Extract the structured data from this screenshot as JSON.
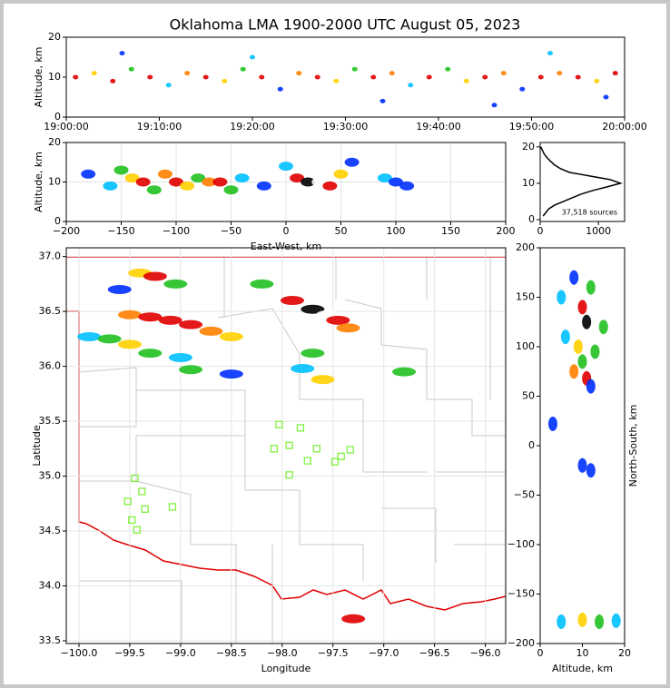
{
  "chart_data": [
    {
      "type": "scatter",
      "title": "Oklahoma LMA 1900-2000 UTC August 05, 2023",
      "ylabel": "Altitude, km",
      "xlim": [
        0,
        60
      ],
      "ylim": [
        0,
        20
      ],
      "yticks": [
        0,
        10,
        20
      ],
      "xticks": [
        {
          "value": 0,
          "label": "19:00:00"
        },
        {
          "value": 10,
          "label": "19:10:00"
        },
        {
          "value": 20,
          "label": "19:20:00"
        },
        {
          "value": 30,
          "label": "19:30:00"
        },
        {
          "value": 40,
          "label": "19:40:00"
        },
        {
          "value": 50,
          "label": "19:50:00"
        },
        {
          "value": 60,
          "label": "20:00:00"
        }
      ],
      "points": {
        "x": [
          1,
          3,
          5,
          7,
          9,
          11,
          13,
          15,
          17,
          19,
          21,
          23,
          25,
          27,
          29,
          31,
          33,
          35,
          37,
          39,
          41,
          43,
          45,
          47,
          49,
          51,
          53,
          55,
          57,
          59,
          6,
          20,
          34,
          46,
          52,
          58
        ],
        "values": [
          10,
          11,
          9,
          12,
          10,
          8,
          11,
          10,
          9,
          12,
          10,
          7,
          11,
          10,
          9,
          12,
          10,
          11,
          8,
          10,
          12,
          9,
          10,
          11,
          7,
          10,
          11,
          10,
          9,
          11,
          16,
          15,
          4,
          3,
          16,
          5
        ],
        "colors": [
          "#e00000",
          "#ffd000",
          "#e00000",
          "#20c020",
          "#e00000",
          "#00c0ff",
          "#ff8000",
          "#e00000",
          "#ffd000",
          "#20c020",
          "#e00000",
          "#0030ff",
          "#ff8000",
          "#e00000",
          "#ffd000",
          "#20c020",
          "#e00000",
          "#ff8000",
          "#00c0ff",
          "#e00000",
          "#20c020",
          "#ffd000",
          "#e00000",
          "#ff8000",
          "#0030ff",
          "#e00000",
          "#ff8000",
          "#e00000",
          "#ffd000",
          "#e00000",
          "#0030ff",
          "#00c0ff",
          "#0030ff",
          "#0030ff",
          "#00c0ff",
          "#0030ff"
        ]
      }
    },
    {
      "type": "scatter",
      "xlabel": "East-West, km",
      "ylabel": "Altitude, km",
      "grid": true,
      "xlim": [
        -200,
        200
      ],
      "ylim": [
        0,
        20
      ],
      "yticks": [
        0,
        10,
        20
      ],
      "xticks": [
        {
          "value": -200,
          "label": "−200"
        },
        {
          "value": -150,
          "label": "−150"
        },
        {
          "value": -100,
          "label": "−100"
        },
        {
          "value": -50,
          "label": "−50"
        },
        0,
        50,
        100,
        150,
        200
      ],
      "points": {
        "x": [
          -180,
          -160,
          -150,
          -140,
          -130,
          -120,
          -110,
          -100,
          -90,
          -80,
          -70,
          -60,
          -50,
          -40,
          -20,
          0,
          10,
          20,
          30,
          40,
          50,
          60,
          90,
          100,
          110
        ],
        "values": [
          12,
          9,
          13,
          11,
          10,
          8,
          12,
          10,
          9,
          11,
          10,
          10,
          8,
          11,
          9,
          14,
          11,
          10,
          10,
          9,
          12,
          15,
          11,
          10,
          9
        ],
        "colors": [
          "#0030ff",
          "#00c0ff",
          "#20c020",
          "#ffd000",
          "#e00000",
          "#20c020",
          "#ff8000",
          "#e00000",
          "#ffd000",
          "#20c020",
          "#ff8000",
          "#e00000",
          "#20c020",
          "#00c0ff",
          "#0030ff",
          "#00c0ff",
          "#e00000",
          "#000000",
          "#ffffff",
          "#e00000",
          "#ffd000",
          "#0030ff",
          "#00c0ff",
          "#0030ff",
          "#0030ff"
        ]
      }
    },
    {
      "type": "line",
      "annotation": "37,518 sources",
      "color": "#000000",
      "xlim": [
        0,
        1450
      ],
      "ylim": [
        -0.5,
        21.2
      ],
      "xticks": [
        0,
        1000
      ],
      "yticks": [
        0,
        10,
        20
      ],
      "y": [
        1,
        2,
        3,
        4,
        5,
        6,
        7,
        8,
        9,
        10,
        11,
        12,
        13,
        14,
        15,
        16,
        17,
        18,
        19,
        20
      ],
      "values": [
        50,
        100,
        150,
        250,
        400,
        550,
        700,
        900,
        1150,
        1380,
        1200,
        850,
        500,
        350,
        250,
        180,
        120,
        70,
        40,
        10
      ]
    },
    {
      "type": "map",
      "xlabel": "Longitude",
      "ylabel": "Latitude",
      "grid": true,
      "xlim": [
        -100.125,
        -95.8
      ],
      "ylim": [
        33.475,
        37.08
      ],
      "xticks": [
        {
          "value": -100,
          "label": "−100.0"
        },
        {
          "value": -99.5,
          "label": "−99.5"
        },
        {
          "value": -99,
          "label": "−99.0"
        },
        {
          "value": -98.5,
          "label": "−98.5"
        },
        {
          "value": -98,
          "label": "−98.0"
        },
        {
          "value": -97.5,
          "label": "−97.5"
        },
        {
          "value": -97,
          "label": "−97.0"
        },
        {
          "value": -96.5,
          "label": "−96.5"
        },
        {
          "value": -96,
          "label": "−96.0"
        }
      ],
      "yticks": [
        {
          "value": 33.5,
          "label": "33.5"
        },
        {
          "value": 34,
          "label": "34.0"
        },
        34.5,
        {
          "value": 35,
          "label": "35.0"
        },
        35.5,
        {
          "value": 36,
          "label": "36.0"
        },
        36.5,
        {
          "value": 37,
          "label": "37.0"
        }
      ],
      "points": {
        "x": [
          -99.4,
          -99.25,
          -99.05,
          -99.6,
          -99.5,
          -99.3,
          -99.1,
          -98.9,
          -98.7,
          -98.5,
          -99.9,
          -99.7,
          -99.5,
          -99.3,
          -99.0,
          -98.9,
          -98.5,
          -98.2,
          -97.9,
          -97.7,
          -97.55,
          -97.45,
          -97.35,
          -97.7,
          -97.8,
          -97.6,
          -96.8,
          -97.3
        ],
        "values": [
          36.85,
          36.82,
          36.75,
          36.7,
          36.47,
          36.45,
          36.42,
          36.38,
          36.32,
          36.27,
          36.27,
          36.25,
          36.2,
          36.12,
          36.08,
          35.97,
          35.93,
          36.75,
          36.6,
          36.52,
          36.47,
          36.42,
          36.35,
          36.12,
          35.98,
          35.88,
          35.95,
          33.7
        ],
        "colors": [
          "#ffd000",
          "#e00000",
          "#20c020",
          "#0030ff",
          "#ff8000",
          "#e00000",
          "#e00000",
          "#e00000",
          "#ff8000",
          "#ffd000",
          "#00c0ff",
          "#20c020",
          "#ffd000",
          "#20c020",
          "#00c0ff",
          "#20c020",
          "#0030ff",
          "#20c020",
          "#e00000",
          "#000000",
          "#ffffff",
          "#e00000",
          "#ff8000",
          "#20c020",
          "#00c0ff",
          "#ffd000",
          "#20c020",
          "#e00000"
        ]
      },
      "stations": {
        "color": "#80f040",
        "x": [
          -98.03,
          -97.82,
          -98.08,
          -97.93,
          -97.66,
          -97.33,
          -97.42,
          -97.48,
          -97.75,
          -97.93,
          -99.45,
          -99.38,
          -99.52,
          -99.35,
          -99.08,
          -99.48,
          -99.43
        ],
        "values": [
          35.47,
          35.44,
          35.25,
          35.28,
          35.25,
          35.24,
          35.18,
          35.13,
          35.14,
          35.01,
          34.98,
          34.86,
          34.77,
          34.7,
          34.72,
          34.6,
          34.51
        ]
      }
    },
    {
      "type": "scatter",
      "xlabel": "Altitude, km",
      "ylabel": "North-South, km",
      "xlim": [
        0,
        20
      ],
      "ylim": [
        -200,
        200
      ],
      "xticks": [
        0,
        10,
        20
      ],
      "yticks": [
        {
          "value": -200,
          "label": "−200"
        },
        {
          "value": -150,
          "label": "−150"
        },
        {
          "value": -100,
          "label": "−100"
        },
        {
          "value": -50,
          "label": "−50"
        },
        0,
        50,
        100,
        150,
        200
      ],
      "points": {
        "x": [
          8,
          12,
          5,
          10,
          12,
          11,
          15,
          6,
          9,
          13,
          10,
          8,
          11,
          12,
          3,
          12,
          10,
          5,
          10,
          14,
          18
        ],
        "values": [
          170,
          160,
          150,
          140,
          130,
          125,
          120,
          110,
          100,
          95,
          85,
          75,
          68,
          60,
          22,
          -25,
          -20,
          -178,
          -176,
          -178,
          -177
        ],
        "colors": [
          "#0030ff",
          "#20c020",
          "#00c0ff",
          "#e00000",
          "#ffffff",
          "#000000",
          "#20c020",
          "#00c0ff",
          "#ffd000",
          "#20c020",
          "#20c020",
          "#ff8000",
          "#e00000",
          "#0030ff",
          "#0030ff",
          "#0030ff",
          "#0030ff",
          "#00c0ff",
          "#ffd000",
          "#20c020",
          "#00c0ff"
        ]
      }
    }
  ]
}
